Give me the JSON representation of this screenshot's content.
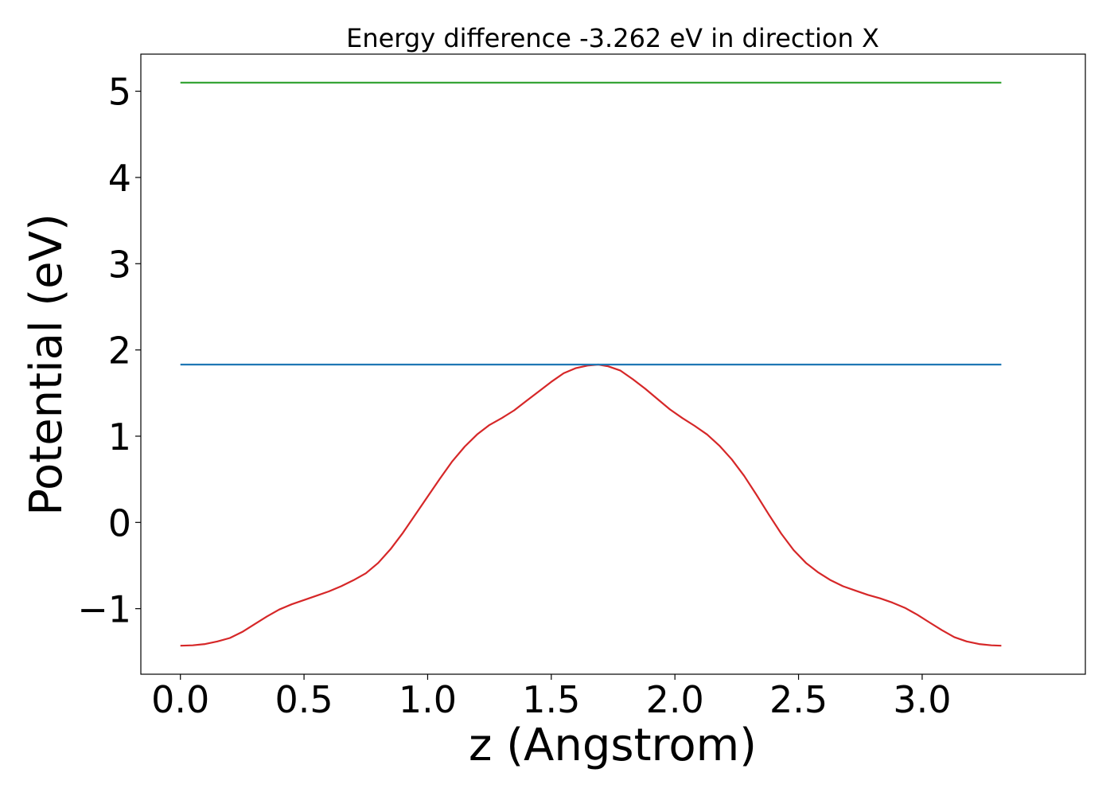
{
  "chart_data": {
    "type": "line",
    "title": "Energy difference -3.262 eV in direction X",
    "xlabel": "z (Angstrom)",
    "ylabel": "Potential (eV)",
    "xlim": [
      -0.16,
      3.66
    ],
    "ylim": [
      -1.76,
      5.43
    ],
    "xticks": [
      0.0,
      0.5,
      1.0,
      1.5,
      2.0,
      2.5,
      3.0
    ],
    "xtick_labels": [
      "0.0",
      "0.5",
      "1.0",
      "1.5",
      "2.0",
      "2.5",
      "3.0"
    ],
    "yticks": [
      -1,
      0,
      1,
      2,
      3,
      4,
      5
    ],
    "ytick_labels": [
      "−1",
      "0",
      "1",
      "2",
      "3",
      "4",
      "5"
    ],
    "grid": false,
    "series": [
      {
        "color": "#d62728",
        "x": [
          0.0,
          0.05,
          0.1,
          0.15,
          0.2,
          0.25,
          0.3,
          0.35,
          0.4,
          0.45,
          0.5,
          0.55,
          0.6,
          0.65,
          0.7,
          0.75,
          0.8,
          0.85,
          0.9,
          0.95,
          1.0,
          1.05,
          1.1,
          1.15,
          1.2,
          1.25,
          1.3,
          1.35,
          1.4,
          1.45,
          1.5,
          1.55,
          1.6,
          1.65,
          1.69,
          1.73,
          1.78,
          1.83,
          1.88,
          1.93,
          1.98,
          2.03,
          2.08,
          2.13,
          2.18,
          2.23,
          2.28,
          2.33,
          2.38,
          2.43,
          2.48,
          2.53,
          2.58,
          2.63,
          2.68,
          2.73,
          2.78,
          2.83,
          2.88,
          2.93,
          2.98,
          3.03,
          3.08,
          3.13,
          3.18,
          3.23,
          3.28,
          3.32
        ],
        "y": [
          -1.43,
          -1.425,
          -1.41,
          -1.38,
          -1.34,
          -1.27,
          -1.18,
          -1.09,
          -1.01,
          -0.95,
          -0.9,
          -0.85,
          -0.8,
          -0.74,
          -0.67,
          -0.59,
          -0.47,
          -0.31,
          -0.12,
          0.09,
          0.3,
          0.51,
          0.71,
          0.88,
          1.02,
          1.13,
          1.21,
          1.3,
          1.41,
          1.52,
          1.63,
          1.73,
          1.79,
          1.82,
          1.83,
          1.81,
          1.76,
          1.66,
          1.55,
          1.43,
          1.31,
          1.21,
          1.12,
          1.02,
          0.89,
          0.73,
          0.54,
          0.32,
          0.09,
          -0.13,
          -0.32,
          -0.47,
          -0.58,
          -0.67,
          -0.74,
          -0.79,
          -0.84,
          -0.88,
          -0.93,
          -0.99,
          -1.07,
          -1.16,
          -1.25,
          -1.33,
          -1.38,
          -1.41,
          -1.425,
          -1.43
        ]
      },
      {
        "color": "#1f77b4",
        "x": [
          0.0,
          3.32
        ],
        "y": [
          1.83,
          1.83
        ]
      },
      {
        "color": "#2ca02c",
        "x": [
          0.0,
          3.32
        ],
        "y": [
          5.1,
          5.1
        ]
      }
    ]
  }
}
